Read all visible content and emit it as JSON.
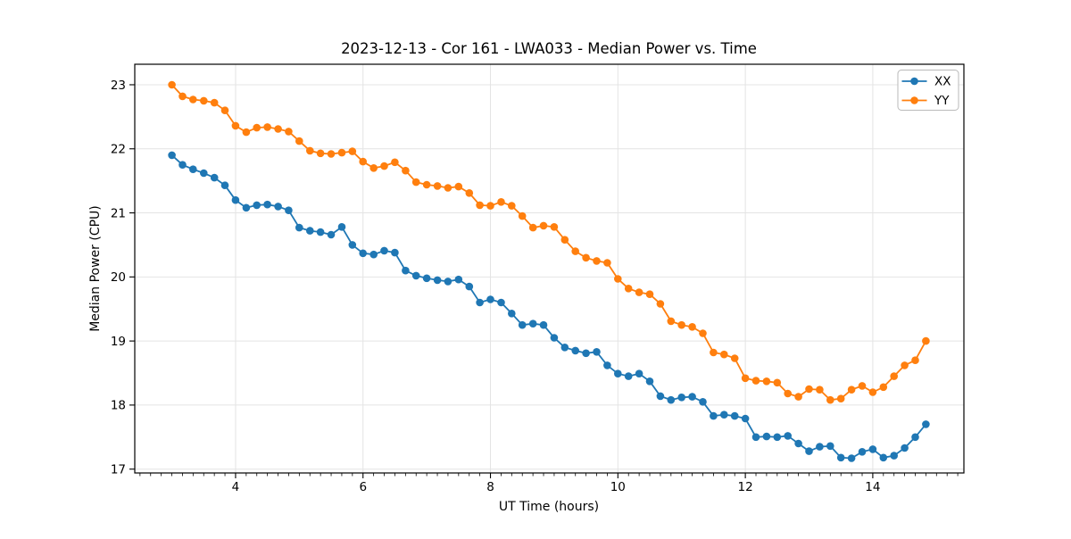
{
  "chart": {
    "title": "2023-12-13 - Cor 161 - LWA033 - Median Power vs. Time",
    "xlabel": "UT Time (hours)",
    "ylabel": "Median Power (CPU)"
  },
  "legend": {
    "position": "upper right",
    "items": [
      {
        "label": "XX",
        "color": "#1f77b4"
      },
      {
        "label": "YY",
        "color": "#ff7f0e"
      }
    ]
  },
  "chart_data": {
    "type": "line",
    "title": "2023-12-13 - Cor 161 - LWA033 - Median Power vs. Time",
    "xlabel": "UT Time (hours)",
    "ylabel": "Median Power (CPU)",
    "grid": true,
    "grid_color": "#e4e4e4",
    "axis_color": "#000000",
    "background": "#ffffff",
    "legend_position": "upper right",
    "marker": "circle",
    "xlim": [
      2.418,
      15.43
    ],
    "ylim": [
      16.94,
      23.32
    ],
    "x_ticks": [
      4,
      6,
      8,
      10,
      12,
      14
    ],
    "y_ticks": [
      17,
      18,
      19,
      20,
      21,
      22,
      23
    ],
    "x_minor_tick_step": 0.1667,
    "x": [
      3.0,
      3.167,
      3.333,
      3.5,
      3.667,
      3.833,
      4.0,
      4.167,
      4.333,
      4.5,
      4.667,
      4.833,
      5.0,
      5.167,
      5.333,
      5.5,
      5.667,
      5.833,
      6.0,
      6.167,
      6.333,
      6.5,
      6.667,
      6.833,
      7.0,
      7.167,
      7.333,
      7.5,
      7.667,
      7.833,
      8.0,
      8.167,
      8.333,
      8.5,
      8.667,
      8.833,
      9.0,
      9.167,
      9.333,
      9.5,
      9.667,
      9.833,
      10.0,
      10.167,
      10.333,
      10.5,
      10.667,
      10.833,
      11.0,
      11.167,
      11.333,
      11.5,
      11.667,
      11.833,
      12.0,
      12.167,
      12.333,
      12.5,
      12.667,
      12.833,
      13.0,
      13.167,
      13.333,
      13.5,
      13.667,
      13.833,
      14.0,
      14.167,
      14.333,
      14.5,
      14.667,
      14.833
    ],
    "series": [
      {
        "name": "XX",
        "color": "#1f77b4",
        "values": [
          21.9,
          21.75,
          21.68,
          21.62,
          21.55,
          21.43,
          21.2,
          21.08,
          21.12,
          21.13,
          21.1,
          21.04,
          20.77,
          20.72,
          20.7,
          20.66,
          20.78,
          20.5,
          20.37,
          20.35,
          20.41,
          20.38,
          20.1,
          20.02,
          19.98,
          19.95,
          19.93,
          19.96,
          19.85,
          19.6,
          19.65,
          19.6,
          19.43,
          19.25,
          19.27,
          19.25,
          19.05,
          18.9,
          18.85,
          18.81,
          18.83,
          18.62,
          18.49,
          18.45,
          18.49,
          18.37,
          18.14,
          18.08,
          18.12,
          18.13,
          18.05,
          17.83,
          17.85,
          17.83,
          17.79,
          17.5,
          17.51,
          17.5,
          17.52,
          17.4,
          17.28,
          17.35,
          17.36,
          17.18,
          17.17,
          17.27,
          17.31,
          17.18,
          17.21,
          17.33,
          17.5,
          17.7
        ]
      },
      {
        "name": "YY",
        "color": "#ff7f0e",
        "values": [
          23.0,
          22.82,
          22.77,
          22.75,
          22.72,
          22.6,
          22.36,
          22.26,
          22.33,
          22.34,
          22.31,
          22.27,
          22.12,
          21.97,
          21.93,
          21.92,
          21.94,
          21.96,
          21.8,
          21.7,
          21.73,
          21.79,
          21.66,
          21.48,
          21.44,
          21.42,
          21.39,
          21.41,
          21.31,
          21.12,
          21.11,
          21.17,
          21.11,
          20.95,
          20.77,
          20.8,
          20.78,
          20.58,
          20.4,
          20.3,
          20.25,
          20.22,
          19.97,
          19.82,
          19.76,
          19.73,
          19.58,
          19.31,
          19.25,
          19.22,
          19.12,
          18.82,
          18.79,
          18.73,
          18.42,
          18.38,
          18.37,
          18.35,
          18.18,
          18.13,
          18.25,
          18.24,
          18.08,
          18.1,
          18.24,
          18.3,
          18.2,
          18.28,
          18.45,
          18.62,
          18.7,
          19.0
        ]
      }
    ]
  }
}
